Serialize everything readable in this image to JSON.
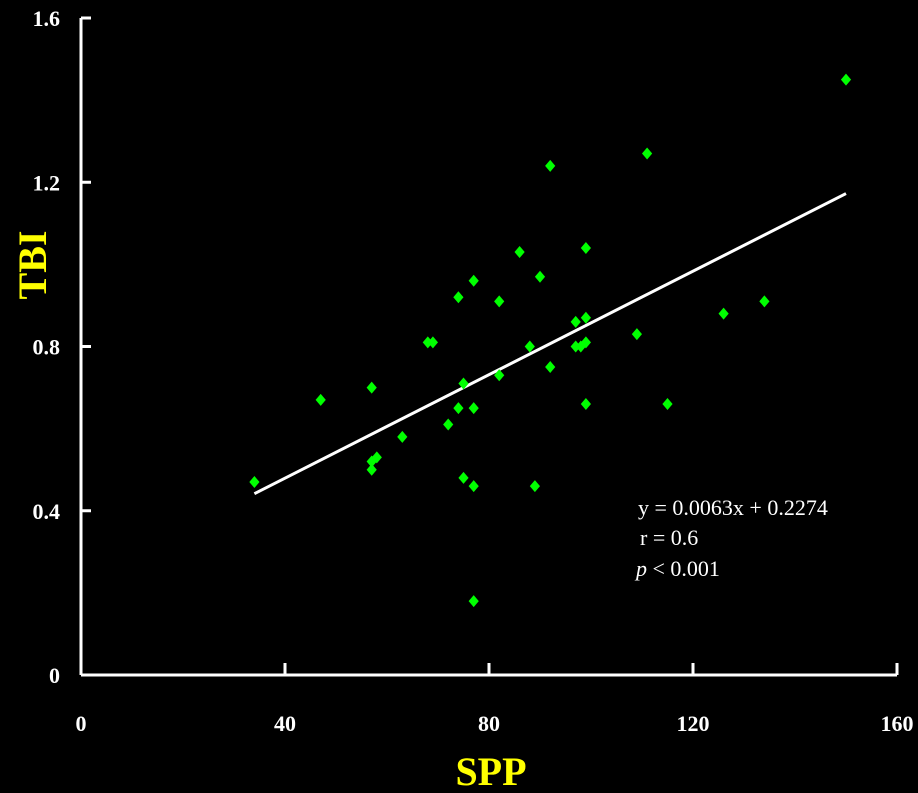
{
  "chart_data": {
    "type": "scatter",
    "xlabel": "SPP",
    "ylabel": "TBI",
    "xlim": [
      0,
      160
    ],
    "ylim": [
      0,
      1.6
    ],
    "xticks": [
      "0",
      "40",
      "80",
      "120",
      "160"
    ],
    "yticks": [
      "0",
      "0.4",
      "0.8",
      "1.2",
      "1.6"
    ],
    "grid": false,
    "legend": "none",
    "colors": {
      "background": "#000000",
      "axis": "#ffffff",
      "points": "#00ff00",
      "trendline": "#ffffff",
      "axis_title": "#ffff00",
      "text": "#ffffff"
    },
    "series": [
      {
        "marker": "diamond",
        "points": [
          [
            34,
            0.47
          ],
          [
            47,
            0.67
          ],
          [
            57,
            0.7
          ],
          [
            57,
            0.5
          ],
          [
            57,
            0.52
          ],
          [
            58,
            0.53
          ],
          [
            63,
            0.58
          ],
          [
            68,
            0.81
          ],
          [
            69,
            0.81
          ],
          [
            72,
            0.61
          ],
          [
            74,
            0.92
          ],
          [
            74,
            0.65
          ],
          [
            75,
            0.71
          ],
          [
            75,
            0.48
          ],
          [
            77,
            0.96
          ],
          [
            77,
            0.65
          ],
          [
            77,
            0.46
          ],
          [
            77,
            0.18
          ],
          [
            82,
            0.73
          ],
          [
            82,
            0.91
          ],
          [
            86,
            1.03
          ],
          [
            88,
            0.8
          ],
          [
            89,
            0.46
          ],
          [
            90,
            0.97
          ],
          [
            92,
            1.24
          ],
          [
            92,
            0.75
          ],
          [
            97,
            0.86
          ],
          [
            97,
            0.8
          ],
          [
            98,
            0.8
          ],
          [
            99,
            1.04
          ],
          [
            99,
            0.87
          ],
          [
            99,
            0.81
          ],
          [
            99,
            0.66
          ],
          [
            109,
            0.83
          ],
          [
            111,
            1.27
          ],
          [
            115,
            0.66
          ],
          [
            126,
            0.88
          ],
          [
            134,
            0.91
          ],
          [
            150,
            1.45
          ]
        ]
      }
    ],
    "trendline": {
      "slope": 0.0063,
      "intercept": 0.2274,
      "x_range": [
        34,
        150
      ]
    },
    "annotations": {
      "equation": "y = 0.0063x + 0.2274",
      "r": "r = 0.6",
      "p_symbol": "p",
      "p_rest": " < 0.001"
    }
  }
}
